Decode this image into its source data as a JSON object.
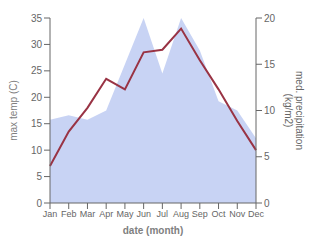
{
  "chart_data": {
    "type": "line",
    "categories": [
      "Jan",
      "Feb",
      "Mar",
      "Apr",
      "May",
      "Jun",
      "Jul",
      "Aug",
      "Sep",
      "Oct",
      "Nov",
      "Dec"
    ],
    "xlabel": "date (month)",
    "ylabel": "max temp (C)",
    "y2label": "med. precipitation\n(kg/m2)",
    "ylim": [
      0,
      35
    ],
    "yticks": [
      0,
      5,
      10,
      15,
      20,
      25,
      30,
      35
    ],
    "y2lim": [
      0,
      20
    ],
    "y2ticks": [
      0,
      5,
      10,
      15,
      20
    ],
    "grid": false,
    "series": [
      {
        "type": "area",
        "color": "#aabbee",
        "axis": "y2",
        "values": [
          9.0,
          9.5,
          9.0,
          10.0,
          15.0,
          20.0,
          14.0,
          20.0,
          16.5,
          11.0,
          10.0,
          7.0
        ]
      },
      {
        "type": "line",
        "color": "#993344",
        "values": [
          7.0,
          13.5,
          18.0,
          23.5,
          21.5,
          28.5,
          29.0,
          33.0,
          27.0,
          21.5,
          15.5,
          10.0
        ]
      }
    ]
  }
}
